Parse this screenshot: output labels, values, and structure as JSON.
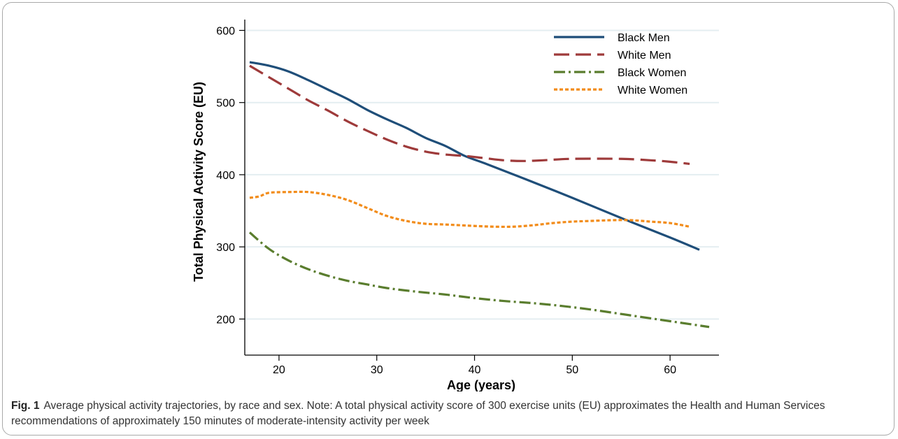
{
  "caption": {
    "label": "Fig. 1",
    "text": "Average physical activity trajectories, by race and sex. Note: A total physical activity score of 300 exercise units (EU) approximates the Health and Human Services recommendations of approximately 150 minutes of moderate-intensity activity per week"
  },
  "chart_data": {
    "type": "line",
    "title": "",
    "xlabel": "Age (years)",
    "ylabel": "Total Physical Activity Score (EU)",
    "xlim": [
      16.5,
      65
    ],
    "ylim": [
      150,
      615
    ],
    "xticks": [
      20,
      30,
      40,
      50,
      60
    ],
    "yticks": [
      200,
      300,
      400,
      500,
      600
    ],
    "grid": true,
    "legend_position": "top-right",
    "series": [
      {
        "name": "Black Men",
        "color": "#1f4e79",
        "dash": "solid",
        "points": [
          [
            17,
            556
          ],
          [
            19,
            551
          ],
          [
            21,
            543
          ],
          [
            23,
            531
          ],
          [
            25,
            518
          ],
          [
            27,
            505
          ],
          [
            29,
            490
          ],
          [
            31,
            477
          ],
          [
            33,
            465
          ],
          [
            35,
            451
          ],
          [
            37,
            440
          ],
          [
            39,
            426
          ],
          [
            41,
            416
          ],
          [
            45,
            395
          ],
          [
            50,
            368
          ],
          [
            55,
            340
          ],
          [
            60,
            313
          ],
          [
            63,
            296
          ]
        ]
      },
      {
        "name": "White Men",
        "color": "#9e3a3a",
        "dash": "long-dash",
        "points": [
          [
            17,
            551
          ],
          [
            19,
            535
          ],
          [
            21,
            519
          ],
          [
            23,
            503
          ],
          [
            25,
            489
          ],
          [
            27,
            474
          ],
          [
            29,
            461
          ],
          [
            31,
            449
          ],
          [
            33,
            439
          ],
          [
            35,
            432
          ],
          [
            37,
            428
          ],
          [
            39,
            426
          ],
          [
            41,
            423
          ],
          [
            43,
            420
          ],
          [
            45,
            419
          ],
          [
            47,
            420
          ],
          [
            50,
            422
          ],
          [
            55,
            422
          ],
          [
            58,
            420
          ],
          [
            60,
            418
          ],
          [
            62,
            415
          ]
        ]
      },
      {
        "name": "Black Women",
        "color": "#5a7d2e",
        "dash": "dash-dot",
        "points": [
          [
            17,
            320
          ],
          [
            19,
            297
          ],
          [
            21,
            281
          ],
          [
            23,
            269
          ],
          [
            25,
            260
          ],
          [
            27,
            253
          ],
          [
            29,
            248
          ],
          [
            31,
            243
          ],
          [
            34,
            238
          ],
          [
            37,
            234
          ],
          [
            40,
            229
          ],
          [
            43,
            225
          ],
          [
            46,
            222
          ],
          [
            49,
            218
          ],
          [
            52,
            213
          ],
          [
            55,
            207
          ],
          [
            58,
            201
          ],
          [
            61,
            195
          ],
          [
            64,
            189
          ]
        ]
      },
      {
        "name": "White Women",
        "color": "#f28c1a",
        "dash": "dotted",
        "points": [
          [
            17,
            368
          ],
          [
            18,
            370
          ],
          [
            19,
            375
          ],
          [
            21,
            376
          ],
          [
            23,
            376
          ],
          [
            25,
            372
          ],
          [
            27,
            365
          ],
          [
            29,
            354
          ],
          [
            31,
            343
          ],
          [
            33,
            336
          ],
          [
            35,
            332
          ],
          [
            37,
            331
          ],
          [
            40,
            329
          ],
          [
            42,
            328
          ],
          [
            44,
            328
          ],
          [
            46,
            330
          ],
          [
            48,
            333
          ],
          [
            50,
            335
          ],
          [
            52,
            336
          ],
          [
            54,
            337
          ],
          [
            56,
            337
          ],
          [
            58,
            335
          ],
          [
            60,
            333
          ],
          [
            62,
            328
          ]
        ]
      }
    ]
  }
}
